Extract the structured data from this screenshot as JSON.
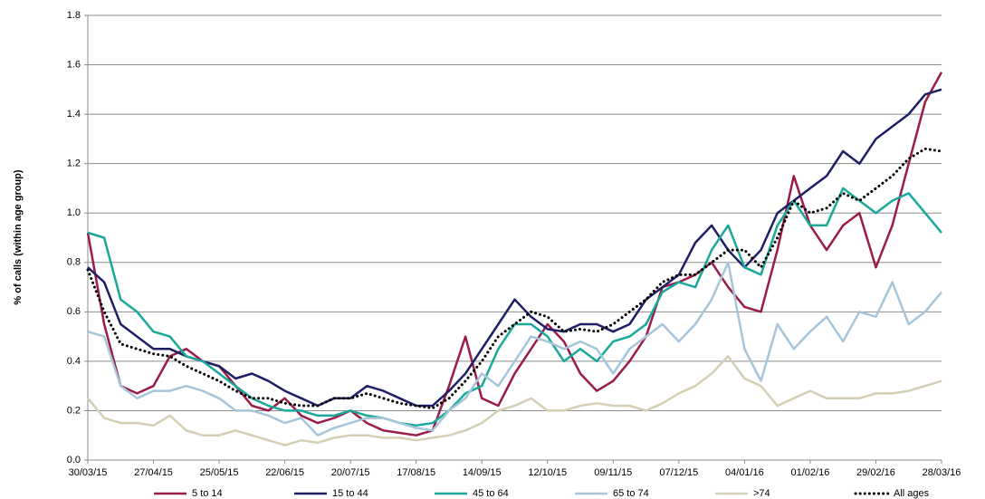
{
  "chart_data": {
    "type": "line",
    "y_label": "% of calls (within age group)",
    "x": [
      "30/03/15",
      "06/04/15",
      "13/04/15",
      "20/04/15",
      "27/04/15",
      "04/05/15",
      "11/05/15",
      "18/05/15",
      "25/05/15",
      "01/06/15",
      "08/06/15",
      "15/06/15",
      "22/06/15",
      "29/06/15",
      "06/07/15",
      "13/07/15",
      "20/07/15",
      "27/07/15",
      "03/08/15",
      "10/08/15",
      "17/08/15",
      "24/08/15",
      "31/08/15",
      "07/09/15",
      "14/09/15",
      "21/09/15",
      "28/09/15",
      "05/10/15",
      "12/10/15",
      "19/10/15",
      "26/10/15",
      "02/11/15",
      "09/11/15",
      "16/11/15",
      "23/11/15",
      "30/11/15",
      "07/12/15",
      "14/12/15",
      "21/12/15",
      "28/12/15",
      "04/01/16",
      "11/01/16",
      "18/01/16",
      "25/01/16",
      "01/02/16",
      "08/02/16",
      "15/02/16",
      "22/02/16",
      "29/02/16",
      "07/03/16",
      "14/03/16",
      "21/03/16",
      "28/03/16"
    ],
    "xlim": [
      "30/03/15",
      "28/03/16"
    ],
    "xticks": [
      "30/03/15",
      "27/04/15",
      "25/05/15",
      "22/06/15",
      "20/07/15",
      "17/08/15",
      "14/09/15",
      "12/10/15",
      "09/11/15",
      "07/12/15",
      "04/01/16",
      "01/02/16",
      "29/02/16",
      "28/03/16"
    ],
    "ylim": [
      0,
      1.8
    ],
    "yticks": [
      {
        "value": 0,
        "label": "0.0"
      },
      0.2,
      0.4,
      0.6,
      0.8,
      {
        "value": 1,
        "label": "1.0"
      },
      1.2,
      1.4,
      1.6,
      1.8
    ],
    "grid": true,
    "legend": "bottom",
    "series": [
      {
        "name": "5 to 14",
        "color": "#9b1b4a",
        "values": [
          0.92,
          0.55,
          0.3,
          0.27,
          0.3,
          0.42,
          0.45,
          0.4,
          0.38,
          0.3,
          0.22,
          0.2,
          0.25,
          0.18,
          0.15,
          0.17,
          0.2,
          0.15,
          0.12,
          0.11,
          0.1,
          0.12,
          0.3,
          0.5,
          0.25,
          0.22,
          0.35,
          0.45,
          0.55,
          0.48,
          0.35,
          0.28,
          0.32,
          0.4,
          0.5,
          0.7,
          0.72,
          0.75,
          0.8,
          0.7,
          0.62,
          0.6,
          0.85,
          1.15,
          0.95,
          0.85,
          0.95,
          1.0,
          0.78,
          0.95,
          1.2,
          1.45,
          1.57
        ]
      },
      {
        "name": "15 to 44",
        "color": "#1f1f66",
        "values": [
          0.78,
          0.72,
          0.55,
          0.5,
          0.45,
          0.45,
          0.42,
          0.4,
          0.38,
          0.33,
          0.35,
          0.32,
          0.28,
          0.25,
          0.22,
          0.25,
          0.25,
          0.3,
          0.28,
          0.25,
          0.22,
          0.22,
          0.28,
          0.35,
          0.45,
          0.55,
          0.65,
          0.58,
          0.53,
          0.52,
          0.55,
          0.55,
          0.52,
          0.55,
          0.65,
          0.7,
          0.75,
          0.88,
          0.95,
          0.85,
          0.78,
          0.85,
          1.0,
          1.05,
          1.1,
          1.15,
          1.25,
          1.2,
          1.3,
          1.35,
          1.4,
          1.48,
          1.5
        ]
      },
      {
        "name": "45 to 64",
        "color": "#1aa89a",
        "values": [
          0.92,
          0.9,
          0.65,
          0.6,
          0.52,
          0.5,
          0.42,
          0.4,
          0.35,
          0.3,
          0.25,
          0.22,
          0.2,
          0.2,
          0.18,
          0.18,
          0.2,
          0.18,
          0.17,
          0.15,
          0.14,
          0.15,
          0.2,
          0.27,
          0.3,
          0.45,
          0.55,
          0.55,
          0.5,
          0.4,
          0.45,
          0.4,
          0.48,
          0.5,
          0.55,
          0.68,
          0.72,
          0.7,
          0.85,
          0.95,
          0.78,
          0.75,
          0.95,
          1.05,
          0.95,
          0.95,
          1.1,
          1.05,
          1.0,
          1.05,
          1.08,
          1.0,
          0.92
        ]
      },
      {
        "name": "65 to 74",
        "color": "#a6c5da",
        "values": [
          0.52,
          0.5,
          0.3,
          0.25,
          0.28,
          0.28,
          0.3,
          0.28,
          0.25,
          0.2,
          0.2,
          0.18,
          0.15,
          0.17,
          0.1,
          0.13,
          0.15,
          0.17,
          0.17,
          0.15,
          0.13,
          0.12,
          0.2,
          0.25,
          0.35,
          0.3,
          0.4,
          0.5,
          0.48,
          0.45,
          0.48,
          0.45,
          0.35,
          0.45,
          0.5,
          0.55,
          0.48,
          0.55,
          0.65,
          0.8,
          0.45,
          0.32,
          0.55,
          0.45,
          0.52,
          0.58,
          0.48,
          0.6,
          0.58,
          0.72,
          0.55,
          0.6,
          0.68
        ]
      },
      {
        "name": ">74",
        "color": "#d4cfb4",
        "values": [
          0.25,
          0.17,
          0.15,
          0.15,
          0.14,
          0.18,
          0.12,
          0.1,
          0.1,
          0.12,
          0.1,
          0.08,
          0.06,
          0.08,
          0.07,
          0.09,
          0.1,
          0.1,
          0.09,
          0.09,
          0.08,
          0.09,
          0.1,
          0.12,
          0.15,
          0.2,
          0.22,
          0.25,
          0.2,
          0.2,
          0.22,
          0.23,
          0.22,
          0.22,
          0.2,
          0.23,
          0.27,
          0.3,
          0.35,
          0.42,
          0.33,
          0.3,
          0.22,
          0.25,
          0.28,
          0.25,
          0.25,
          0.25,
          0.27,
          0.27,
          0.28,
          0.3,
          0.32
        ]
      },
      {
        "name": "All ages",
        "color": "#000000",
        "line_style": "dotted",
        "values": [
          0.77,
          0.6,
          0.47,
          0.45,
          0.43,
          0.42,
          0.38,
          0.35,
          0.32,
          0.28,
          0.25,
          0.25,
          0.23,
          0.22,
          0.22,
          0.25,
          0.25,
          0.27,
          0.25,
          0.23,
          0.22,
          0.21,
          0.25,
          0.32,
          0.4,
          0.5,
          0.55,
          0.6,
          0.58,
          0.52,
          0.53,
          0.52,
          0.55,
          0.6,
          0.65,
          0.72,
          0.75,
          0.75,
          0.8,
          0.85,
          0.85,
          0.78,
          0.9,
          1.05,
          1.0,
          1.02,
          1.08,
          1.05,
          1.1,
          1.15,
          1.22,
          1.26,
          1.25
        ]
      }
    ]
  }
}
